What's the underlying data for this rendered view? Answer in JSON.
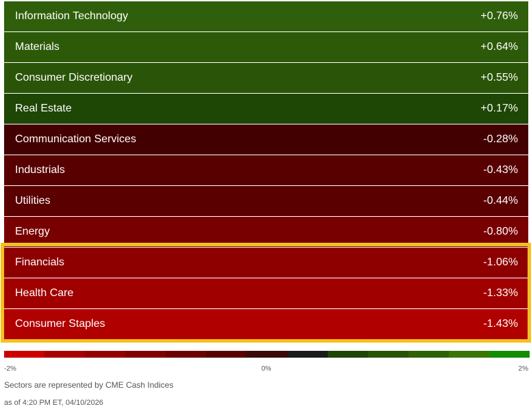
{
  "rows": [
    {
      "name": "Information Technology",
      "change": "+0.76%",
      "color": "#2f5f0b"
    },
    {
      "name": "Materials",
      "change": "+0.64%",
      "color": "#2c5a09"
    },
    {
      "name": "Consumer Discretionary",
      "change": "+0.55%",
      "color": "#2a5508"
    },
    {
      "name": "Real Estate",
      "change": "+0.17%",
      "color": "#1e4604"
    },
    {
      "name": "Communication Services",
      "change": "-0.28%",
      "color": "#430000"
    },
    {
      "name": "Industrials",
      "change": "-0.43%",
      "color": "#580000"
    },
    {
      "name": "Utilities",
      "change": "-0.44%",
      "color": "#5a0000"
    },
    {
      "name": "Energy",
      "change": "-0.80%",
      "color": "#780000"
    },
    {
      "name": "Financials",
      "change": "-1.06%",
      "color": "#8e0000"
    },
    {
      "name": "Health Care",
      "change": "-1.33%",
      "color": "#a00000"
    },
    {
      "name": "Consumer Staples",
      "change": "-1.43%",
      "color": "#b00000"
    }
  ],
  "scale": {
    "min": "-2%",
    "mid": "0%",
    "max": "2%",
    "colors": [
      "#cc0000",
      "#a80000",
      "#940000",
      "#800000",
      "#6c0000",
      "#580000",
      "#3a0808",
      "#1a1a1a",
      "#1e4605",
      "#255407",
      "#2d6208",
      "#3a7606",
      "#118d00"
    ]
  },
  "note": "Sectors are represented by CME Cash Indices",
  "timestamp": "as of 4:20 PM ET, 04/10/2026"
}
